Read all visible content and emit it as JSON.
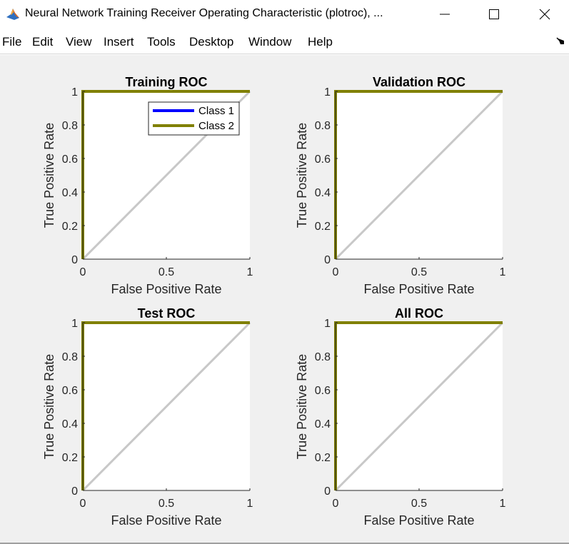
{
  "window": {
    "title": "Neural Network Training Receiver Operating Characteristic (plotroc), ...",
    "icon": "matlab-logo-icon",
    "controls": [
      "minimize-icon",
      "maximize-icon",
      "close-icon"
    ]
  },
  "menu": {
    "items": [
      "File",
      "Edit",
      "View",
      "Insert",
      "Tools",
      "Desktop",
      "Window",
      "Help"
    ],
    "dock_icon": "dock-arrow-icon"
  },
  "colors": {
    "class1": "#0000ff",
    "class2": "#808000",
    "diagonal": "#c8c8c8",
    "figure_background": "#f0f0f0",
    "axes_background": "#ffffff"
  },
  "chart_data": [
    {
      "type": "line",
      "title": "Training ROC",
      "xlabel": "False Positive Rate",
      "ylabel": "True Positive Rate",
      "xlim": [
        0,
        1
      ],
      "ylim": [
        0,
        1
      ],
      "xticks": [
        "0",
        "0.5",
        "1"
      ],
      "yticks": [
        "0",
        "0.2",
        "0.4",
        "0.6",
        "0.8",
        "1"
      ],
      "legend": {
        "position": "top-right",
        "entries": [
          "Class 1",
          "Class 2"
        ]
      },
      "series": [
        {
          "name": "Class 1",
          "color": "#0000ff",
          "x": [
            0,
            0,
            1
          ],
          "y": [
            0,
            1,
            1
          ]
        },
        {
          "name": "Class 2",
          "color": "#808000",
          "x": [
            0,
            0,
            1
          ],
          "y": [
            0,
            1,
            1
          ]
        }
      ],
      "reference_line": {
        "x": [
          0,
          1
        ],
        "y": [
          0,
          1
        ]
      }
    },
    {
      "type": "line",
      "title": "Validation ROC",
      "xlabel": "False Positive Rate",
      "ylabel": "True Positive Rate",
      "xlim": [
        0,
        1
      ],
      "ylim": [
        0,
        1
      ],
      "xticks": [
        "0",
        "0.5",
        "1"
      ],
      "yticks": [
        "0",
        "0.2",
        "0.4",
        "0.6",
        "0.8",
        "1"
      ],
      "series": [
        {
          "name": "Class 1",
          "color": "#0000ff",
          "x": [
            0,
            0,
            1
          ],
          "y": [
            0,
            1,
            1
          ]
        },
        {
          "name": "Class 2",
          "color": "#808000",
          "x": [
            0,
            0,
            1
          ],
          "y": [
            0,
            1,
            1
          ]
        }
      ],
      "reference_line": {
        "x": [
          0,
          1
        ],
        "y": [
          0,
          1
        ]
      }
    },
    {
      "type": "line",
      "title": "Test ROC",
      "xlabel": "False Positive Rate",
      "ylabel": "True Positive Rate",
      "xlim": [
        0,
        1
      ],
      "ylim": [
        0,
        1
      ],
      "xticks": [
        "0",
        "0.5",
        "1"
      ],
      "yticks": [
        "0",
        "0.2",
        "0.4",
        "0.6",
        "0.8",
        "1"
      ],
      "series": [
        {
          "name": "Class 1",
          "color": "#0000ff",
          "x": [
            0,
            0,
            1
          ],
          "y": [
            0,
            1,
            1
          ]
        },
        {
          "name": "Class 2",
          "color": "#808000",
          "x": [
            0,
            0,
            1
          ],
          "y": [
            0,
            1,
            1
          ]
        }
      ],
      "reference_line": {
        "x": [
          0,
          1
        ],
        "y": [
          0,
          1
        ]
      }
    },
    {
      "type": "line",
      "title": "All ROC",
      "xlabel": "False Positive Rate",
      "ylabel": "True Positive Rate",
      "xlim": [
        0,
        1
      ],
      "ylim": [
        0,
        1
      ],
      "xticks": [
        "0",
        "0.5",
        "1"
      ],
      "yticks": [
        "0",
        "0.2",
        "0.4",
        "0.6",
        "0.8",
        "1"
      ],
      "series": [
        {
          "name": "Class 1",
          "color": "#0000ff",
          "x": [
            0,
            0,
            1
          ],
          "y": [
            0,
            1,
            1
          ]
        },
        {
          "name": "Class 2",
          "color": "#808000",
          "x": [
            0,
            0,
            1
          ],
          "y": [
            0,
            1,
            1
          ]
        }
      ],
      "reference_line": {
        "x": [
          0,
          1
        ],
        "y": [
          0,
          1
        ]
      }
    }
  ]
}
